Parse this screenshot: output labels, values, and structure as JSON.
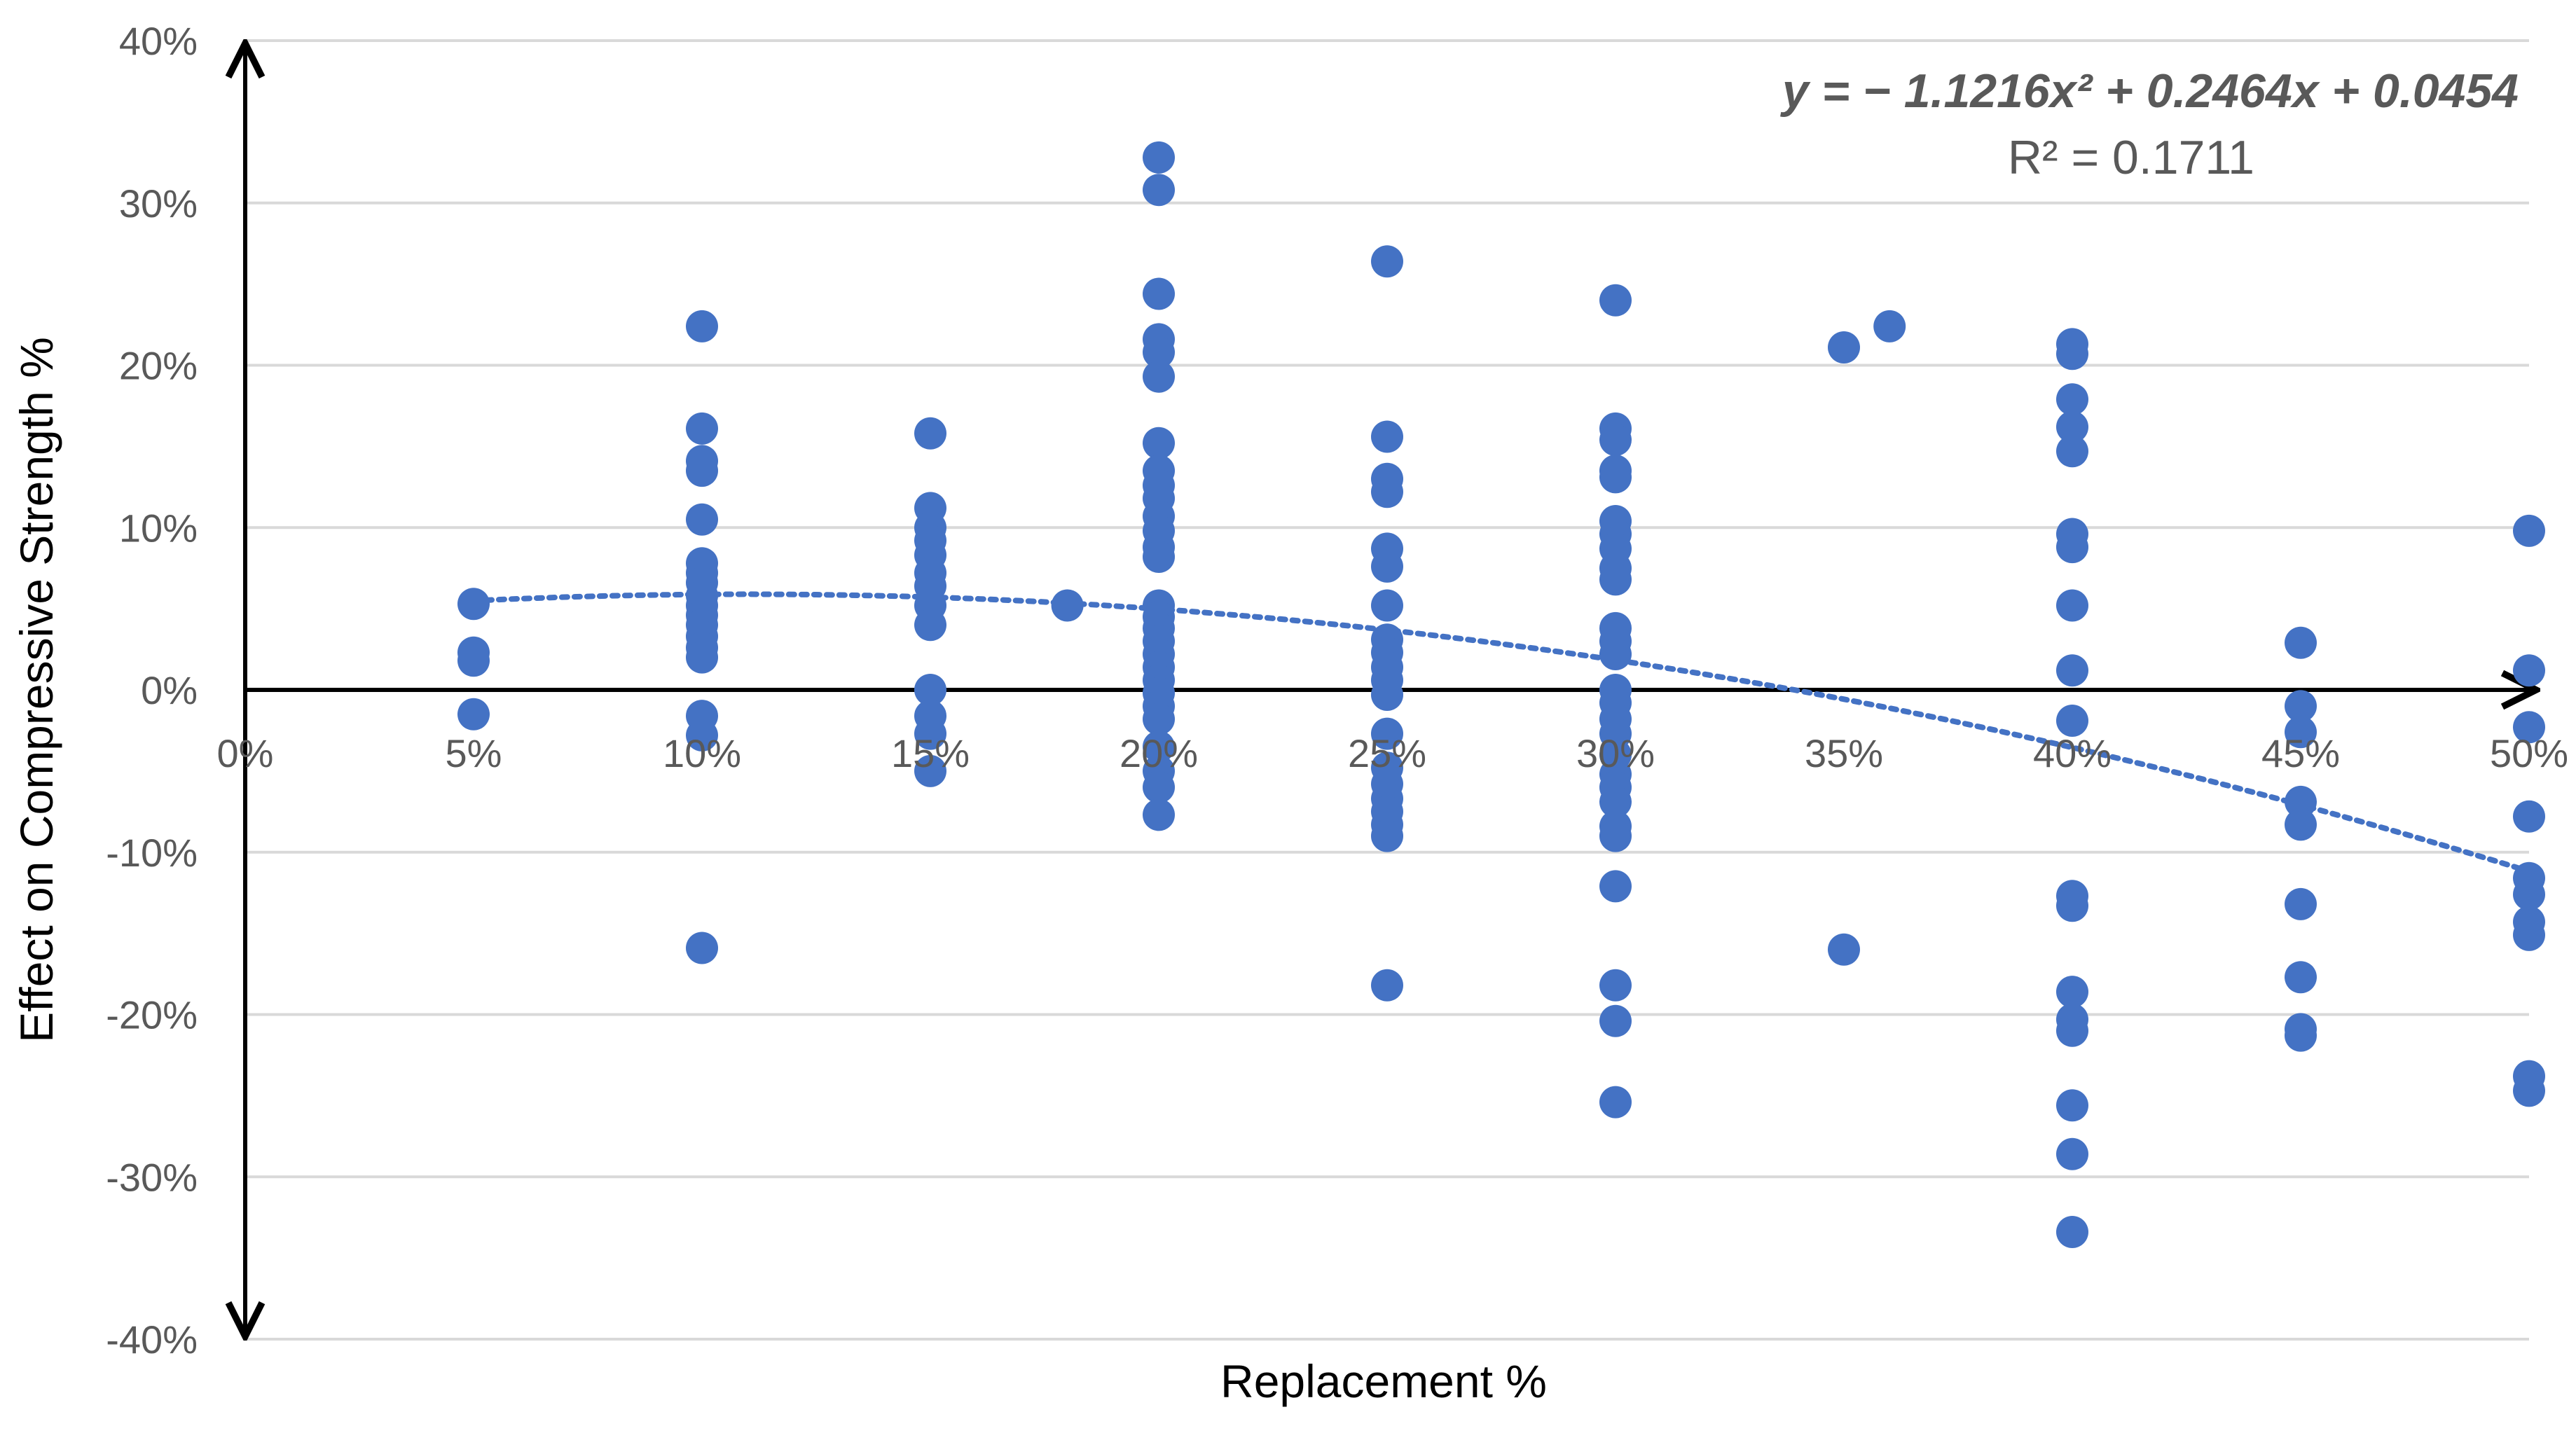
{
  "chart_data": {
    "type": "scatter",
    "xlabel": "Replacement %",
    "ylabel": "Effect on Compressive Strength %",
    "xlim": [
      0,
      0.5
    ],
    "ylim": [
      -0.4,
      0.4
    ],
    "x_ticks": [
      "0%",
      "5%",
      "10%",
      "15%",
      "20%",
      "25%",
      "30%",
      "35%",
      "40%",
      "45%",
      "50%"
    ],
    "y_ticks": [
      "40%",
      "30%",
      "20%",
      "10%",
      "0%",
      "-10%",
      "-20%",
      "-30%",
      "-40%"
    ],
    "grid": "horizontal",
    "marker_color": "#4472C4",
    "trendline": {
      "type": "polynomial-2",
      "equation": "y = − 1.1216x² + 0.2464x + 0.0454",
      "r_squared": "R² = 0.1711",
      "coefficients": [
        -1.1216,
        0.2464,
        0.0454
      ],
      "x_range": [
        0.05,
        0.5
      ],
      "style": "dotted",
      "color": "#4472C4"
    },
    "series": [
      {
        "points": [
          [
            0.05,
            0.053
          ],
          [
            0.05,
            0.023
          ],
          [
            0.05,
            0.018
          ],
          [
            0.05,
            -0.015
          ],
          [
            0.1,
            0.224
          ],
          [
            0.1,
            0.161
          ],
          [
            0.1,
            0.141
          ],
          [
            0.1,
            0.135
          ],
          [
            0.1,
            0.105
          ],
          [
            0.1,
            0.078
          ],
          [
            0.1,
            0.072
          ],
          [
            0.1,
            0.066
          ],
          [
            0.1,
            0.058
          ],
          [
            0.1,
            0.052
          ],
          [
            0.1,
            0.046
          ],
          [
            0.1,
            0.04
          ],
          [
            0.1,
            0.033
          ],
          [
            0.1,
            0.026
          ],
          [
            0.1,
            0.02
          ],
          [
            0.1,
            -0.016
          ],
          [
            0.1,
            -0.028
          ],
          [
            0.1,
            -0.159
          ],
          [
            0.15,
            0.158
          ],
          [
            0.15,
            0.112
          ],
          [
            0.15,
            0.1
          ],
          [
            0.15,
            0.092
          ],
          [
            0.15,
            0.083
          ],
          [
            0.15,
            0.072
          ],
          [
            0.15,
            0.064
          ],
          [
            0.15,
            0.052
          ],
          [
            0.15,
            0.04
          ],
          [
            0.15,
            0.0
          ],
          [
            0.15,
            -0.016
          ],
          [
            0.15,
            -0.027
          ],
          [
            0.15,
            -0.05
          ],
          [
            0.18,
            0.052
          ],
          [
            0.2,
            0.328
          ],
          [
            0.2,
            0.308
          ],
          [
            0.2,
            0.244
          ],
          [
            0.2,
            0.216
          ],
          [
            0.2,
            0.208
          ],
          [
            0.2,
            0.193
          ],
          [
            0.2,
            0.152
          ],
          [
            0.2,
            0.135
          ],
          [
            0.2,
            0.126
          ],
          [
            0.2,
            0.118
          ],
          [
            0.2,
            0.107
          ],
          [
            0.2,
            0.098
          ],
          [
            0.2,
            0.088
          ],
          [
            0.2,
            0.082
          ],
          [
            0.2,
            0.052
          ],
          [
            0.2,
            0.045
          ],
          [
            0.2,
            0.038
          ],
          [
            0.2,
            0.03
          ],
          [
            0.2,
            0.022
          ],
          [
            0.2,
            0.014
          ],
          [
            0.2,
            0.006
          ],
          [
            0.2,
            -0.002
          ],
          [
            0.2,
            -0.01
          ],
          [
            0.2,
            -0.018
          ],
          [
            0.2,
            -0.035
          ],
          [
            0.2,
            -0.05
          ],
          [
            0.2,
            -0.06
          ],
          [
            0.2,
            -0.077
          ],
          [
            0.25,
            0.264
          ],
          [
            0.25,
            0.156
          ],
          [
            0.25,
            0.13
          ],
          [
            0.25,
            0.122
          ],
          [
            0.25,
            0.087
          ],
          [
            0.25,
            0.076
          ],
          [
            0.25,
            0.052
          ],
          [
            0.25,
            0.031
          ],
          [
            0.25,
            0.023
          ],
          [
            0.25,
            0.014
          ],
          [
            0.25,
            0.006
          ],
          [
            0.25,
            -0.003
          ],
          [
            0.25,
            -0.027
          ],
          [
            0.25,
            -0.048
          ],
          [
            0.25,
            -0.058
          ],
          [
            0.25,
            -0.067
          ],
          [
            0.25,
            -0.075
          ],
          [
            0.25,
            -0.083
          ],
          [
            0.25,
            -0.09
          ],
          [
            0.25,
            -0.182
          ],
          [
            0.3,
            0.24
          ],
          [
            0.3,
            0.161
          ],
          [
            0.3,
            0.154
          ],
          [
            0.3,
            0.135
          ],
          [
            0.3,
            0.131
          ],
          [
            0.3,
            0.104
          ],
          [
            0.3,
            0.096
          ],
          [
            0.3,
            0.087
          ],
          [
            0.3,
            0.075
          ],
          [
            0.3,
            0.068
          ],
          [
            0.3,
            0.038
          ],
          [
            0.3,
            0.03
          ],
          [
            0.3,
            0.022
          ],
          [
            0.3,
            0.0
          ],
          [
            0.3,
            -0.008
          ],
          [
            0.3,
            -0.018
          ],
          [
            0.3,
            -0.027
          ],
          [
            0.3,
            -0.04
          ],
          [
            0.3,
            -0.052
          ],
          [
            0.3,
            -0.06
          ],
          [
            0.3,
            -0.069
          ],
          [
            0.3,
            -0.084
          ],
          [
            0.3,
            -0.09
          ],
          [
            0.3,
            -0.121
          ],
          [
            0.3,
            -0.182
          ],
          [
            0.3,
            -0.204
          ],
          [
            0.3,
            -0.254
          ],
          [
            0.35,
            0.211
          ],
          [
            0.35,
            -0.16
          ],
          [
            0.36,
            0.224
          ],
          [
            0.4,
            0.213
          ],
          [
            0.4,
            0.207
          ],
          [
            0.4,
            0.179
          ],
          [
            0.4,
            0.162
          ],
          [
            0.4,
            0.147
          ],
          [
            0.4,
            0.096
          ],
          [
            0.4,
            0.088
          ],
          [
            0.4,
            0.052
          ],
          [
            0.4,
            0.012
          ],
          [
            0.4,
            -0.019
          ],
          [
            0.4,
            -0.127
          ],
          [
            0.4,
            -0.133
          ],
          [
            0.4,
            -0.186
          ],
          [
            0.4,
            -0.203
          ],
          [
            0.4,
            -0.21
          ],
          [
            0.4,
            -0.256
          ],
          [
            0.4,
            -0.286
          ],
          [
            0.4,
            -0.334
          ],
          [
            0.45,
            0.029
          ],
          [
            0.45,
            -0.01
          ],
          [
            0.45,
            -0.026
          ],
          [
            0.45,
            -0.069
          ],
          [
            0.45,
            -0.083
          ],
          [
            0.45,
            -0.132
          ],
          [
            0.45,
            -0.177
          ],
          [
            0.45,
            -0.209
          ],
          [
            0.45,
            -0.213
          ],
          [
            0.5,
            0.098
          ],
          [
            0.5,
            0.012
          ],
          [
            0.5,
            -0.023
          ],
          [
            0.5,
            -0.078
          ],
          [
            0.5,
            -0.116
          ],
          [
            0.5,
            -0.126
          ],
          [
            0.5,
            -0.143
          ],
          [
            0.5,
            -0.151
          ],
          [
            0.5,
            -0.238
          ],
          [
            0.5,
            -0.247
          ]
        ]
      }
    ]
  }
}
